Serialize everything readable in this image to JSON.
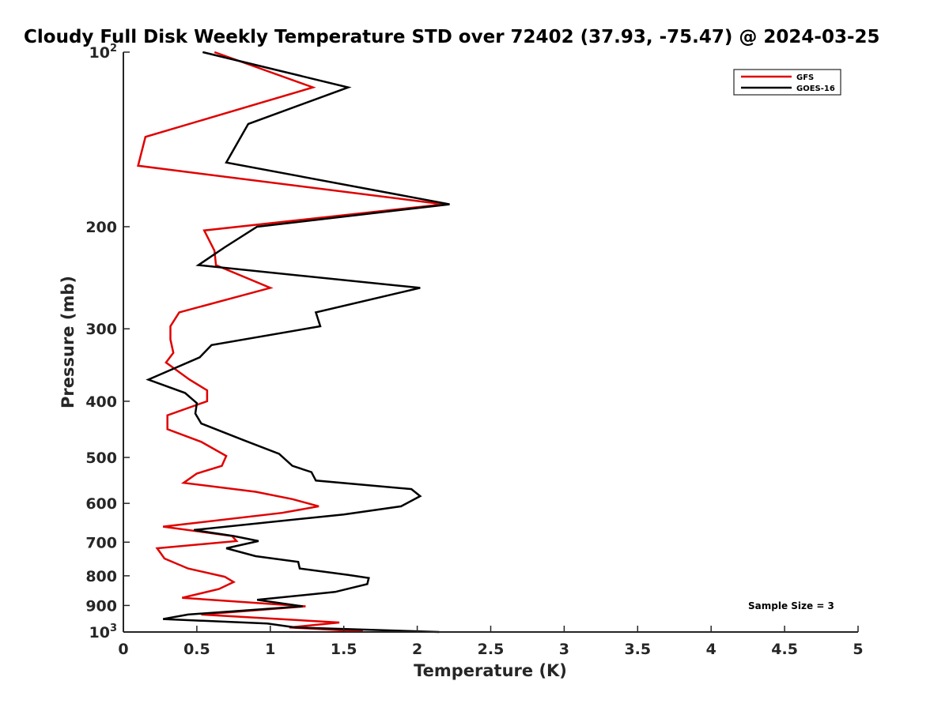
{
  "chart_data": {
    "type": "line",
    "title": "Cloudy Full Disk Weekly Temperature STD over 72402 (37.93, -75.47) @ 2024-03-25",
    "xlabel": "Temperature (K)",
    "ylabel": "Pressure (mb)",
    "xlim": [
      0,
      5
    ],
    "ylim": [
      1000,
      100
    ],
    "yscale": "log",
    "y_reversed": true,
    "grid": false,
    "legend_position": "top-right",
    "x_ticks": [
      {
        "value": 0,
        "label": "0"
      },
      {
        "value": 0.5,
        "label": "0.5"
      },
      {
        "value": 1,
        "label": "1"
      },
      {
        "value": 1.5,
        "label": "1.5"
      },
      {
        "value": 2,
        "label": "2"
      },
      {
        "value": 2.5,
        "label": "2.5"
      },
      {
        "value": 3,
        "label": "3"
      },
      {
        "value": 3.5,
        "label": "3.5"
      },
      {
        "value": 4,
        "label": "4"
      },
      {
        "value": 4.5,
        "label": "4.5"
      },
      {
        "value": 5,
        "label": "5"
      }
    ],
    "y_ticks": [
      {
        "value": 100,
        "base": "10",
        "exp": "2"
      },
      {
        "value": 200,
        "base": "200",
        "exp": ""
      },
      {
        "value": 300,
        "base": "300",
        "exp": ""
      },
      {
        "value": 400,
        "base": "400",
        "exp": ""
      },
      {
        "value": 500,
        "base": "500",
        "exp": ""
      },
      {
        "value": 600,
        "base": "600",
        "exp": ""
      },
      {
        "value": 700,
        "base": "700",
        "exp": ""
      },
      {
        "value": 800,
        "base": "800",
        "exp": ""
      },
      {
        "value": 900,
        "base": "900",
        "exp": ""
      },
      {
        "value": 1000,
        "base": "10",
        "exp": "3"
      }
    ],
    "annotation": "Sample Size = 3",
    "series": [
      {
        "name": "GFS",
        "color": "#e00000",
        "points": [
          [
            0.62,
            100
          ],
          [
            1.29,
            115
          ],
          [
            0.15,
            140
          ],
          [
            0.1,
            157
          ],
          [
            2.18,
            183
          ],
          [
            0.55,
            203
          ],
          [
            0.62,
            220
          ],
          [
            0.63,
            233
          ],
          [
            1.0,
            255
          ],
          [
            0.38,
            281
          ],
          [
            0.32,
            297
          ],
          [
            0.32,
            313
          ],
          [
            0.34,
            330
          ],
          [
            0.29,
            343
          ],
          [
            0.45,
            367
          ],
          [
            0.57,
            383
          ],
          [
            0.57,
            400
          ],
          [
            0.3,
            423
          ],
          [
            0.3,
            447
          ],
          [
            0.53,
            470
          ],
          [
            0.7,
            497
          ],
          [
            0.67,
            517
          ],
          [
            0.5,
            533
          ],
          [
            0.41,
            553
          ],
          [
            0.9,
            573
          ],
          [
            1.15,
            590
          ],
          [
            1.33,
            607
          ],
          [
            1.08,
            623
          ],
          [
            0.27,
            658
          ],
          [
            0.74,
            683
          ],
          [
            0.77,
            697
          ],
          [
            0.23,
            717
          ],
          [
            0.28,
            747
          ],
          [
            0.44,
            777
          ],
          [
            0.69,
            803
          ],
          [
            0.75,
            820
          ],
          [
            0.65,
            843
          ],
          [
            0.4,
            873
          ],
          [
            1.24,
            903
          ],
          [
            0.53,
            933
          ],
          [
            1.47,
            963
          ],
          [
            1.13,
            982
          ],
          [
            1.63,
            998
          ]
        ]
      },
      {
        "name": "GOES-16",
        "color": "#000000",
        "points": [
          [
            0.54,
            100
          ],
          [
            1.53,
            115
          ],
          [
            0.85,
            133
          ],
          [
            0.7,
            155
          ],
          [
            2.22,
            183
          ],
          [
            0.91,
            200
          ],
          [
            0.69,
            217
          ],
          [
            0.51,
            233
          ],
          [
            2.02,
            255
          ],
          [
            1.31,
            281
          ],
          [
            1.34,
            297
          ],
          [
            0.6,
            320
          ],
          [
            0.52,
            336
          ],
          [
            0.17,
            367
          ],
          [
            0.42,
            387
          ],
          [
            0.5,
            403
          ],
          [
            0.49,
            420
          ],
          [
            0.53,
            437
          ],
          [
            0.82,
            467
          ],
          [
            1.06,
            493
          ],
          [
            1.15,
            517
          ],
          [
            1.28,
            530
          ],
          [
            1.31,
            548
          ],
          [
            1.96,
            567
          ],
          [
            2.02,
            583
          ],
          [
            1.89,
            607
          ],
          [
            1.5,
            627
          ],
          [
            0.48,
            667
          ],
          [
            0.75,
            683
          ],
          [
            0.92,
            697
          ],
          [
            0.7,
            717
          ],
          [
            0.9,
            740
          ],
          [
            1.19,
            757
          ],
          [
            1.2,
            777
          ],
          [
            1.53,
            797
          ],
          [
            1.67,
            807
          ],
          [
            1.66,
            827
          ],
          [
            1.44,
            853
          ],
          [
            0.91,
            880
          ],
          [
            1.22,
            903
          ],
          [
            0.44,
            933
          ],
          [
            0.27,
            950
          ],
          [
            0.98,
            967
          ],
          [
            1.17,
            982
          ],
          [
            2.15,
            1000
          ]
        ]
      }
    ]
  }
}
